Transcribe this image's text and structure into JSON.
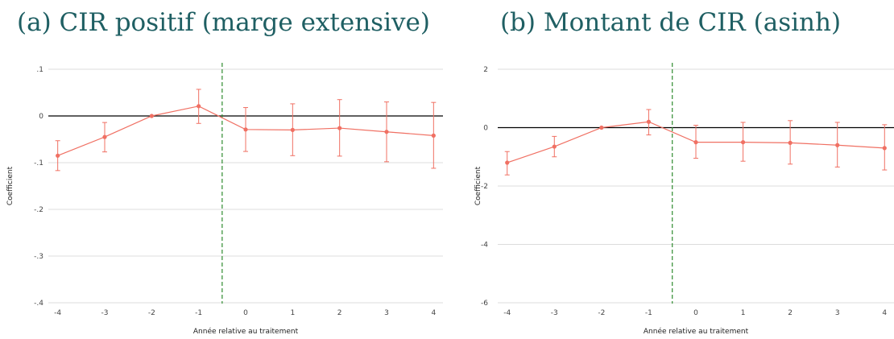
{
  "chart_data": [
    {
      "type": "line",
      "title": "(a) CIR positif (marge extensive)",
      "xlabel": "Année relative au traitement",
      "ylabel": "Coefficient",
      "categories": [
        "-4",
        "-3",
        "-2",
        "-1",
        "0",
        "1",
        "2",
        "3",
        "4"
      ],
      "x": [
        -4,
        -3,
        -2,
        -1,
        0,
        1,
        2,
        3,
        4
      ],
      "xlim": [
        -4.2,
        4.2
      ],
      "ylim": [
        -0.4,
        0.1
      ],
      "yticks": [
        0.1,
        0,
        -0.1,
        -0.2,
        -0.3,
        -0.4
      ],
      "ytick_labels": [
        ".1",
        "0",
        "-.1",
        "-.2",
        "-.3",
        "-.4"
      ],
      "event_line_x": -0.5,
      "zero_line": 0,
      "grid": true,
      "series": [
        {
          "values": [
            -0.085,
            -0.045,
            0,
            0.021,
            -0.029,
            -0.03,
            -0.026,
            -0.034,
            -0.042
          ],
          "ci_low": [
            -0.117,
            -0.077,
            0,
            -0.016,
            -0.076,
            -0.085,
            -0.086,
            -0.098,
            -0.112
          ],
          "ci_high": [
            -0.053,
            -0.014,
            0,
            0.057,
            0.018,
            0.026,
            0.035,
            0.03,
            0.029
          ],
          "color": "#f07063"
        }
      ]
    },
    {
      "type": "line",
      "title": "(b) Montant de CIR (asinh)",
      "xlabel": "Année relative au traitement",
      "ylabel": "Coefficient",
      "categories": [
        "-4",
        "-3",
        "-2",
        "-1",
        "0",
        "1",
        "2",
        "3",
        "4"
      ],
      "x": [
        -4,
        -3,
        -2,
        -1,
        0,
        1,
        2,
        3,
        4
      ],
      "xlim": [
        -4.2,
        4.2
      ],
      "ylim": [
        -6,
        2
      ],
      "yticks": [
        2,
        0,
        -2,
        -4,
        -6
      ],
      "ytick_labels": [
        "2",
        "0",
        "-2",
        "-4",
        "-6"
      ],
      "event_line_x": -0.5,
      "zero_line": 0,
      "grid": true,
      "series": [
        {
          "values": [
            -1.2,
            -0.65,
            0,
            0.2,
            -0.5,
            -0.5,
            -0.52,
            -0.6,
            -0.7
          ],
          "ci_low": [
            -1.62,
            -1.0,
            0,
            -0.25,
            -1.05,
            -1.15,
            -1.25,
            -1.35,
            -1.45
          ],
          "ci_high": [
            -0.82,
            -0.3,
            0,
            0.62,
            0.08,
            0.18,
            0.24,
            0.18,
            0.1
          ],
          "color": "#f07063"
        }
      ]
    }
  ]
}
